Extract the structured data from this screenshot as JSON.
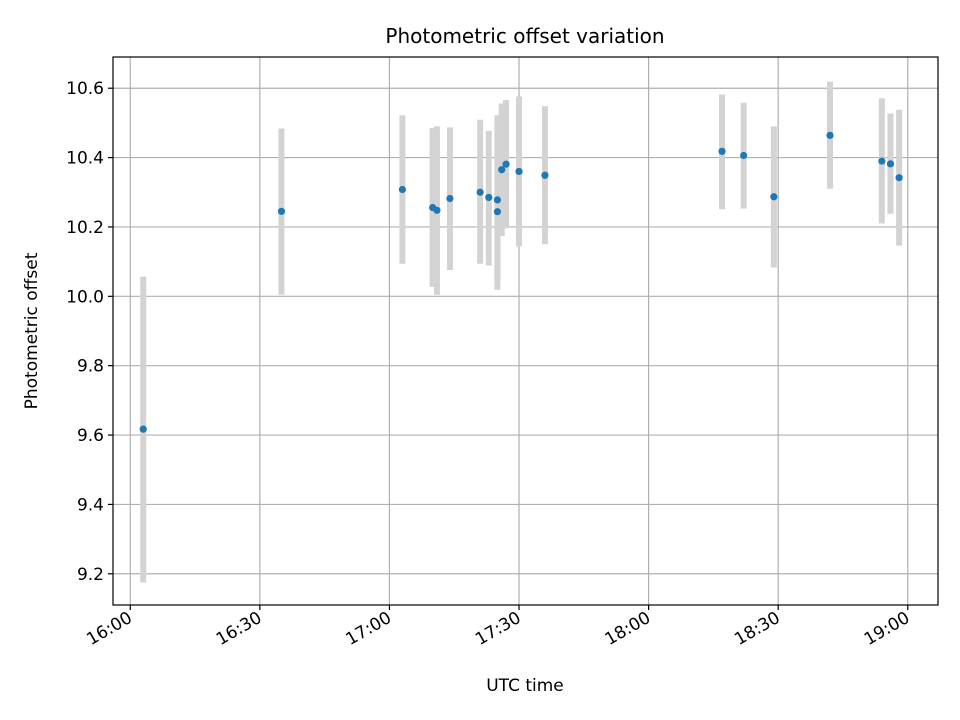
{
  "chart_data": {
    "type": "scatter",
    "title": "Photometric offset variation",
    "xlabel": "UTC time",
    "ylabel": "Photometric offset",
    "x_unit": "minutes",
    "xlim": [
      "15:56",
      "19:07"
    ],
    "ylim": [
      9.11,
      10.69
    ],
    "x_ticks": [
      "16:00",
      "16:30",
      "17:00",
      "17:30",
      "18:00",
      "18:30",
      "19:00"
    ],
    "y_ticks": [
      "9.2",
      "9.4",
      "9.6",
      "9.8",
      "10.0",
      "10.2",
      "10.4",
      "10.6"
    ],
    "grid": true,
    "series": [
      {
        "errorbar_color": "#d3d3d3",
        "marker_color": "#1f77b4",
        "points": [
          {
            "time": "16:03",
            "y": 9.617,
            "low": 9.175,
            "high": 10.057
          },
          {
            "time": "16:35",
            "y": 10.245,
            "low": 10.005,
            "high": 10.484
          },
          {
            "time": "17:03",
            "y": 10.308,
            "low": 10.094,
            "high": 10.522
          },
          {
            "time": "17:10",
            "y": 10.256,
            "low": 10.027,
            "high": 10.485
          },
          {
            "time": "17:11",
            "y": 10.248,
            "low": 10.004,
            "high": 10.49
          },
          {
            "time": "17:14",
            "y": 10.282,
            "low": 10.076,
            "high": 10.487
          },
          {
            "time": "17:21",
            "y": 10.3,
            "low": 10.094,
            "high": 10.509
          },
          {
            "time": "17:23",
            "y": 10.285,
            "low": 10.089,
            "high": 10.477
          },
          {
            "time": "17:25",
            "y": 10.244,
            "low": 10.019,
            "high": 10.468
          },
          {
            "time": "17:25",
            "y": 10.278,
            "low": 10.035,
            "high": 10.522
          },
          {
            "time": "17:26",
            "y": 10.365,
            "low": 10.174,
            "high": 10.556
          },
          {
            "time": "17:27",
            "y": 10.381,
            "low": 10.196,
            "high": 10.566
          },
          {
            "time": "17:30",
            "y": 10.36,
            "low": 10.144,
            "high": 10.576
          },
          {
            "time": "17:36",
            "y": 10.349,
            "low": 10.15,
            "high": 10.548
          },
          {
            "time": "18:17",
            "y": 10.418,
            "low": 10.251,
            "high": 10.582
          },
          {
            "time": "18:22",
            "y": 10.406,
            "low": 10.253,
            "high": 10.558
          },
          {
            "time": "18:29",
            "y": 10.287,
            "low": 10.083,
            "high": 10.49
          },
          {
            "time": "18:42",
            "y": 10.464,
            "low": 10.31,
            "high": 10.619
          },
          {
            "time": "18:54",
            "y": 10.39,
            "low": 10.21,
            "high": 10.571
          },
          {
            "time": "18:56",
            "y": 10.382,
            "low": 10.238,
            "high": 10.527
          },
          {
            "time": "18:58",
            "y": 10.342,
            "low": 10.146,
            "high": 10.538
          }
        ]
      }
    ]
  }
}
